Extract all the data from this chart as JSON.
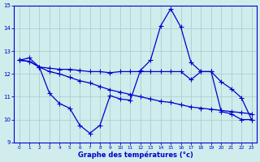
{
  "x": [
    0,
    1,
    2,
    3,
    4,
    5,
    6,
    7,
    8,
    9,
    10,
    11,
    12,
    13,
    14,
    15,
    16,
    17,
    18,
    19,
    20,
    21,
    22,
    23
  ],
  "line_peak": [
    12.6,
    12.7,
    12.3,
    11.15,
    10.7,
    10.5,
    9.75,
    9.4,
    9.75,
    11.05,
    10.9,
    10.85,
    12.15,
    12.6,
    14.1,
    14.85,
    14.05,
    12.5,
    12.1,
    12.1,
    10.35,
    10.25,
    10.0,
    10.0
  ],
  "line_upper_flat": [
    12.6,
    12.55,
    12.3,
    12.25,
    12.2,
    12.2,
    12.15,
    12.1,
    12.1,
    12.05,
    12.1,
    12.1,
    12.1,
    12.1,
    12.1,
    12.1,
    12.1,
    11.75,
    12.1,
    12.1,
    11.65,
    11.35,
    10.95,
    10.0
  ],
  "line_lower_flat": [
    12.6,
    12.55,
    12.3,
    12.1,
    12.0,
    11.85,
    11.7,
    11.6,
    11.45,
    11.3,
    11.2,
    11.1,
    11.0,
    10.9,
    10.8,
    10.75,
    10.65,
    10.55,
    10.5,
    10.45,
    10.4,
    10.35,
    10.3,
    10.25
  ],
  "color": "#0000cc",
  "bg_color": "#d0ecec",
  "grid_color": "#a0cccc",
  "xlabel": "Graphe des températures (°c)",
  "ylim": [
    9,
    15
  ],
  "xlim": [
    -0.5,
    23.5
  ],
  "yticks": [
    9,
    10,
    11,
    12,
    13,
    14,
    15
  ],
  "xticks": [
    0,
    1,
    2,
    3,
    4,
    5,
    6,
    7,
    8,
    9,
    10,
    11,
    12,
    13,
    14,
    15,
    16,
    17,
    18,
    19,
    20,
    21,
    22,
    23
  ],
  "marker": "+",
  "markersize": 4.0,
  "linewidth": 0.9
}
